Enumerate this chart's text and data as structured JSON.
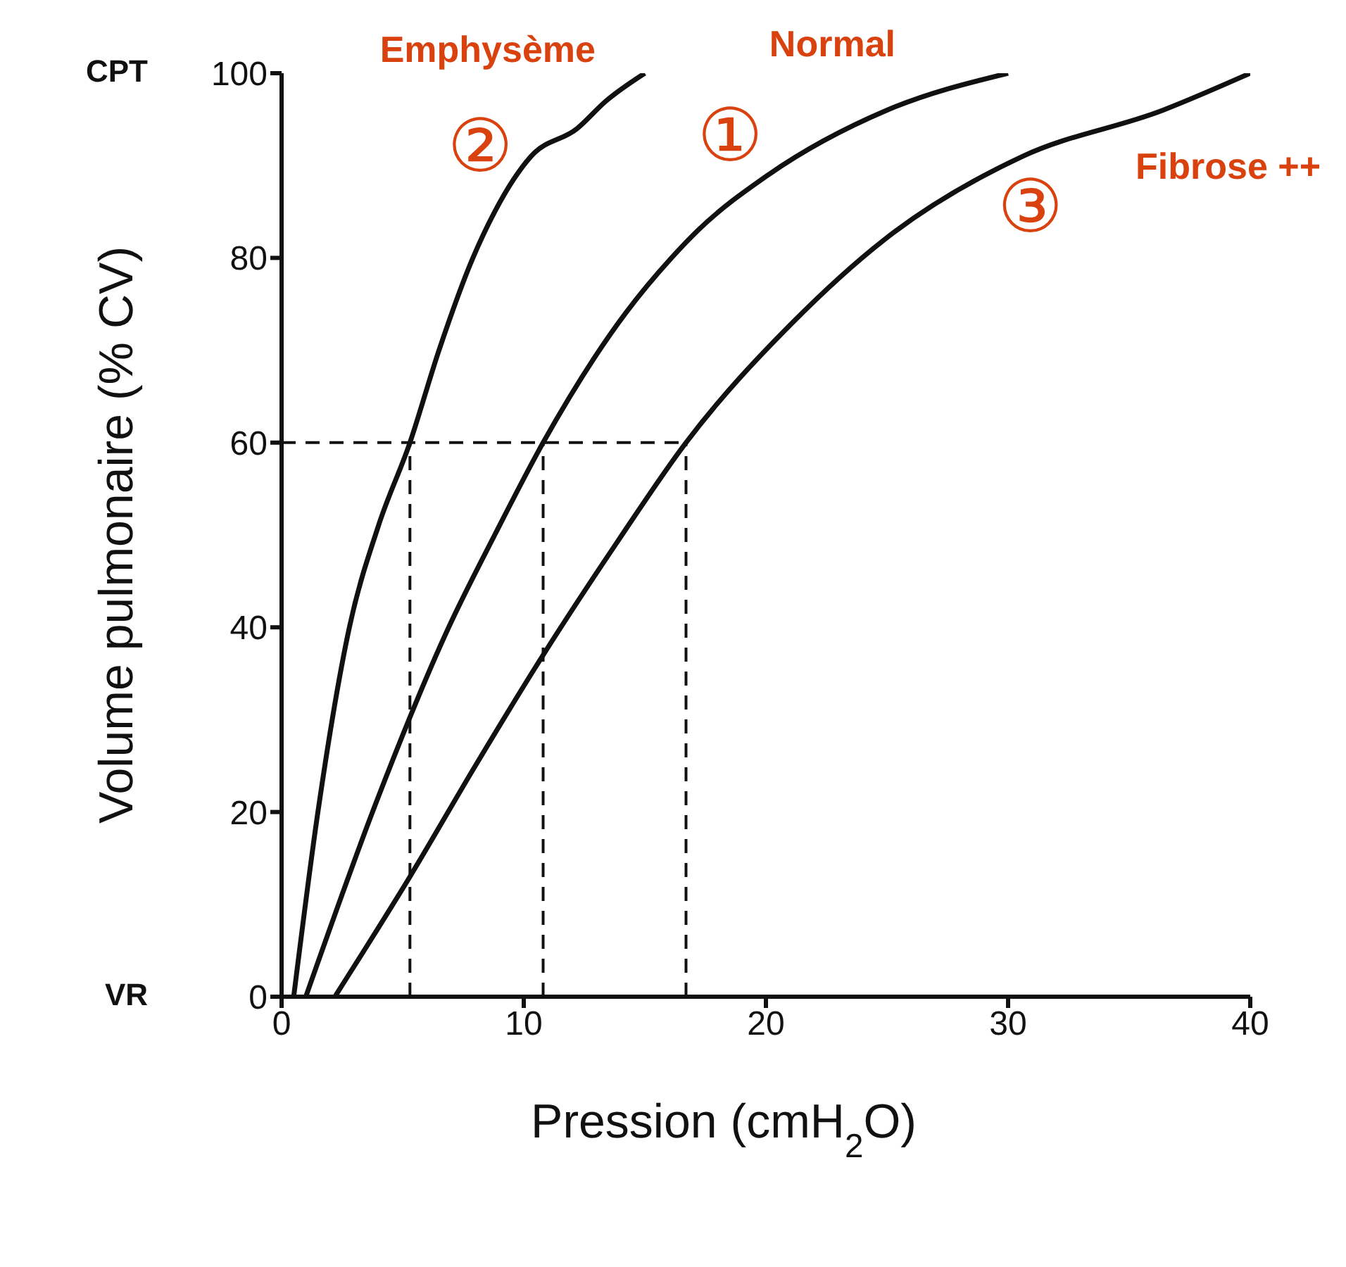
{
  "chart_data": {
    "type": "line",
    "xlabel": "Pression (cmH$_{2}$O)",
    "ylabel": "Volume pulmonaire (% CV)",
    "xlim": [
      0,
      40
    ],
    "xticks": [
      0,
      10,
      20,
      30,
      40
    ],
    "ylim": [
      0,
      100
    ],
    "yticks": [
      0,
      20,
      40,
      60,
      80,
      100
    ],
    "grid": false,
    "legend": false,
    "marker": "none",
    "series": [
      {
        "name": "Emphysème",
        "color": "#111111",
        "x": [
          0.5,
          1.5,
          2.8,
          4,
          5.3,
          6.5,
          7.9,
          8.8,
          10.3,
          12.2,
          13.4,
          15
        ],
        "values": [
          0,
          20,
          40,
          51,
          60,
          70,
          80,
          85,
          91,
          94,
          97,
          100
        ]
      },
      {
        "name": "Normal",
        "color": "#111111",
        "x": [
          1,
          3.9,
          6.9,
          8.8,
          10.8,
          14.2,
          16.1,
          17.2,
          20.1,
          25,
          30
        ],
        "values": [
          0,
          21,
          40,
          50,
          60,
          74,
          80,
          83,
          89,
          96,
          100
        ]
      },
      {
        "name": "Fibrose ++",
        "color": "#111111",
        "x": [
          2.2,
          5.3,
          8,
          10.8,
          13.8,
          16.7,
          21.1,
          24.9,
          30.6,
          36.4,
          40
        ],
        "values": [
          0,
          13,
          25,
          37,
          49,
          60,
          73,
          82,
          91,
          96,
          100
        ]
      },
      {
        "color": "#111111",
        "line_style": "dashed",
        "x": [
          0,
          16.7
        ],
        "values": [
          60,
          60
        ]
      },
      {
        "color": "#111111",
        "line_style": "dashed",
        "x": [
          5.3,
          5.3
        ],
        "values": [
          0,
          60
        ]
      },
      {
        "color": "#111111",
        "line_style": "dashed",
        "x": [
          10.8,
          10.8
        ],
        "values": [
          0,
          60
        ]
      },
      {
        "color": "#111111",
        "line_style": "dashed",
        "x": [
          16.7,
          16.7
        ],
        "values": [
          0,
          60
        ]
      }
    ],
    "annotations": [
      "CPT",
      "VR",
      "②",
      "①",
      "③"
    ]
  }
}
